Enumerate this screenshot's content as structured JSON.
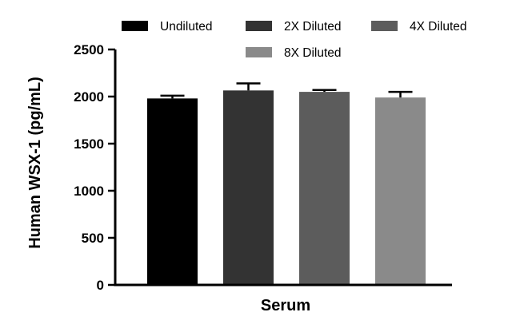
{
  "chart_data": {
    "type": "bar",
    "categories": [
      "Serum"
    ],
    "series": [
      {
        "name": "Undiluted",
        "values": [
          1980
        ],
        "error": [
          30
        ],
        "color": "#000000"
      },
      {
        "name": "2X Diluted",
        "values": [
          2065
        ],
        "error": [
          75
        ],
        "color": "#333333"
      },
      {
        "name": "4X Diluted",
        "values": [
          2050
        ],
        "error": [
          20
        ],
        "color": "#5c5c5c"
      },
      {
        "name": "8X Diluted",
        "values": [
          1990
        ],
        "error": [
          60
        ],
        "color": "#8a8a8a"
      }
    ],
    "xlabel": "Serum",
    "ylabel": "Human WSX-1 (pg/mL)",
    "ylim": [
      0,
      2500
    ],
    "yticks": [
      0,
      500,
      1000,
      1500,
      2000,
      2500
    ],
    "legend_position": "top",
    "grid": false
  }
}
